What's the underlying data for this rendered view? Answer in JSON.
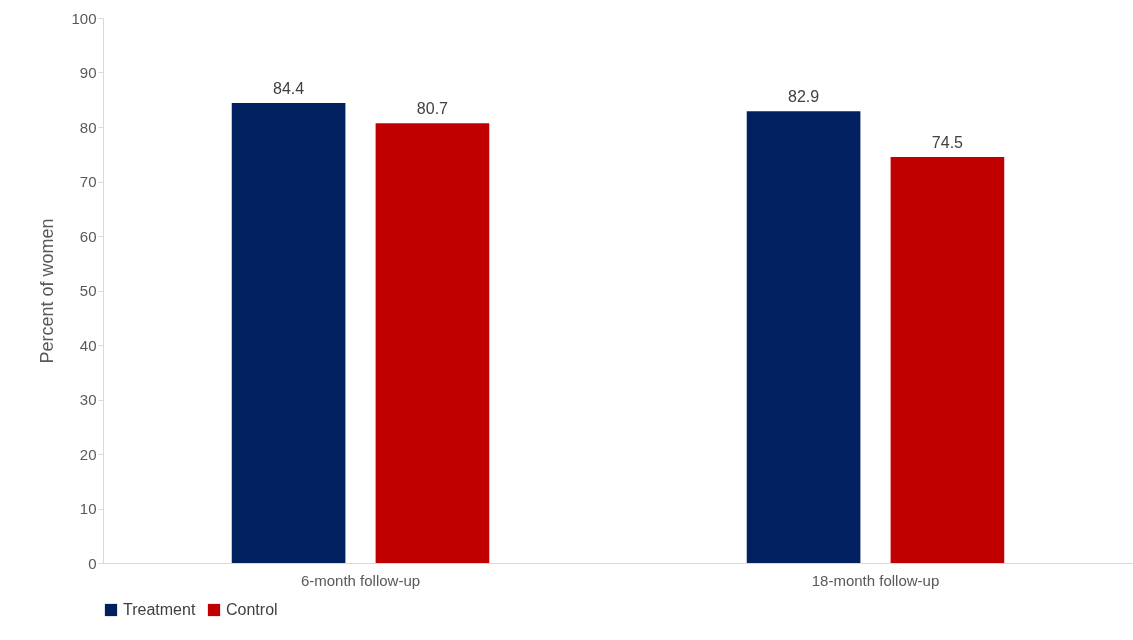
{
  "chart_data": {
    "type": "bar",
    "ylabel": "Percent of women",
    "categories": [
      "6-month follow-up",
      "18-month follow-up"
    ],
    "series": [
      {
        "name": "Treatment",
        "color": "#002060",
        "values": [
          84.4,
          82.9
        ]
      },
      {
        "name": "Control",
        "color": "#c00000",
        "values": [
          80.7,
          74.5
        ]
      }
    ],
    "ylim": [
      0,
      100
    ],
    "yticks": [
      0,
      10,
      20,
      30,
      40,
      50,
      60,
      70,
      80,
      90,
      100
    ],
    "grid": false,
    "legend": "bottom",
    "data_labels": true
  }
}
